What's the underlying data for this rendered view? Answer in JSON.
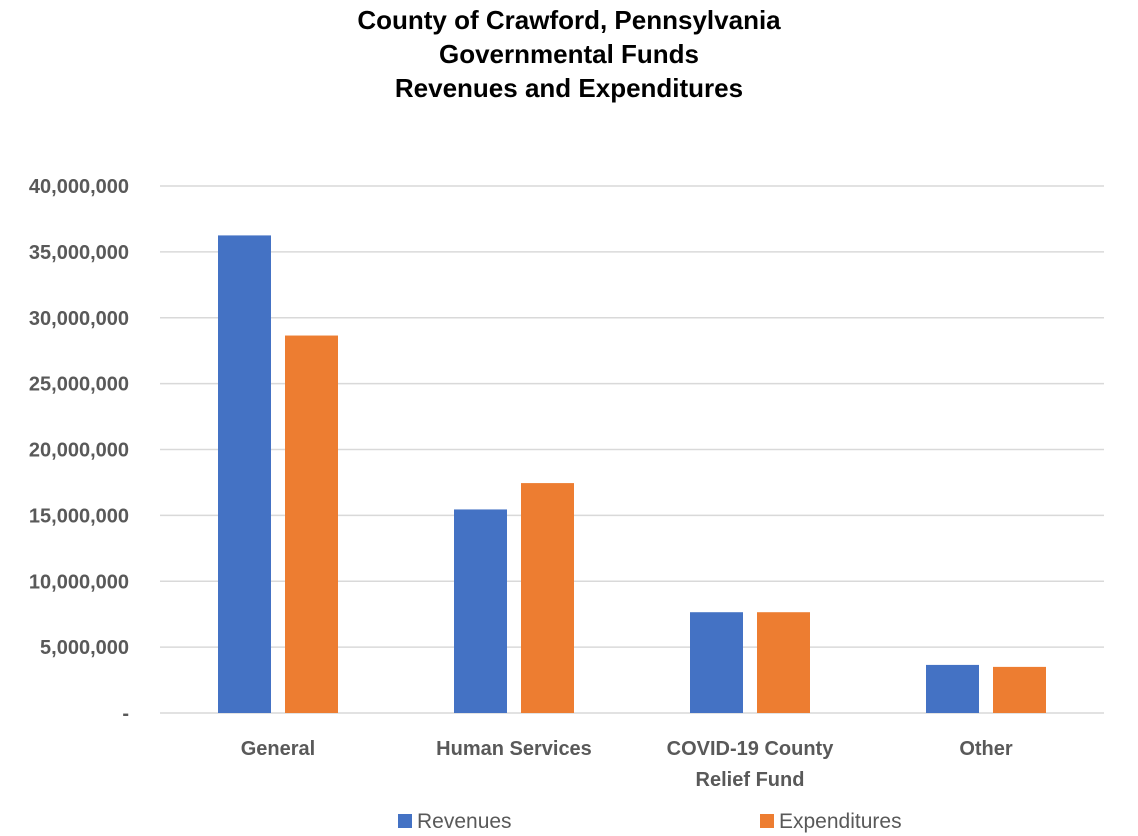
{
  "chart_data": {
    "type": "bar",
    "title_lines": [
      "County of Crawford, Pennsylvania",
      "Governmental Funds",
      "Revenues and Expenditures"
    ],
    "categories": [
      [
        "General"
      ],
      [
        "Human Services"
      ],
      [
        "COVID-19 County",
        "Relief Fund"
      ],
      [
        "Other"
      ]
    ],
    "series": [
      {
        "name": "Revenues",
        "color": "#4472C4",
        "values": [
          36250000,
          15450000,
          7650000,
          3650000
        ]
      },
      {
        "name": "Expenditures",
        "color": "#ED7D31",
        "values": [
          28650000,
          17450000,
          7650000,
          3500000
        ]
      }
    ],
    "ylim": [
      0,
      40000000
    ],
    "y_ticks": [
      0,
      5000000,
      10000000,
      15000000,
      20000000,
      25000000,
      30000000,
      35000000,
      40000000
    ],
    "y_tick_labels": [
      "-",
      "5,000,000",
      "10,000,000",
      "15,000,000",
      "20,000,000",
      "25,000,000",
      "30,000,000",
      "35,000,000",
      "40,000,000"
    ],
    "grid": true,
    "legend_position": "bottom",
    "gridline_color": "#D9D9D9"
  }
}
